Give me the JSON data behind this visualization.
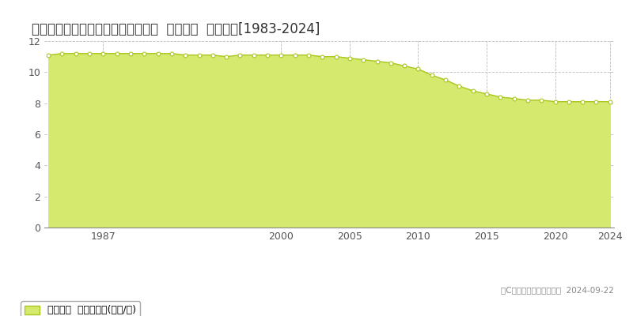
{
  "title": "宮崎県都城市下川東１丁目７号８番  基準地価  地価推移[1983-2024]",
  "years": [
    1983,
    1984,
    1985,
    1986,
    1987,
    1988,
    1989,
    1990,
    1991,
    1992,
    1993,
    1994,
    1995,
    1996,
    1997,
    1998,
    1999,
    2000,
    2001,
    2002,
    2003,
    2004,
    2005,
    2006,
    2007,
    2008,
    2009,
    2010,
    2011,
    2012,
    2013,
    2014,
    2015,
    2016,
    2017,
    2018,
    2019,
    2020,
    2021,
    2022,
    2023,
    2024
  ],
  "values": [
    11.1,
    11.2,
    11.2,
    11.2,
    11.2,
    11.2,
    11.2,
    11.2,
    11.2,
    11.2,
    11.1,
    11.1,
    11.1,
    11.0,
    11.1,
    11.1,
    11.1,
    11.1,
    11.1,
    11.1,
    11.0,
    11.0,
    10.9,
    10.8,
    10.7,
    10.6,
    10.4,
    10.2,
    9.8,
    9.5,
    9.1,
    8.8,
    8.6,
    8.4,
    8.3,
    8.2,
    8.2,
    8.1,
    8.1,
    8.1,
    8.1,
    8.1
  ],
  "fill_color": "#d4e96e",
  "line_color": "#a8c820",
  "marker_color": "#ffffff",
  "marker_edge_color": "#a8c820",
  "background_color": "#ffffff",
  "plot_bg_color": "#f5f5f5",
  "grid_color": "#bbbbbb",
  "ylim": [
    0,
    12
  ],
  "yticks": [
    0,
    2,
    4,
    6,
    8,
    10,
    12
  ],
  "xticks": [
    1987,
    2000,
    2005,
    2010,
    2015,
    2020,
    2024
  ],
  "legend_label": "基準地価  平均坪単価(万円/坪)",
  "copyright_text": "（C）土地価格ドットコム  2024-09-22",
  "title_fontsize": 12,
  "axis_fontsize": 9,
  "legend_fontsize": 9
}
